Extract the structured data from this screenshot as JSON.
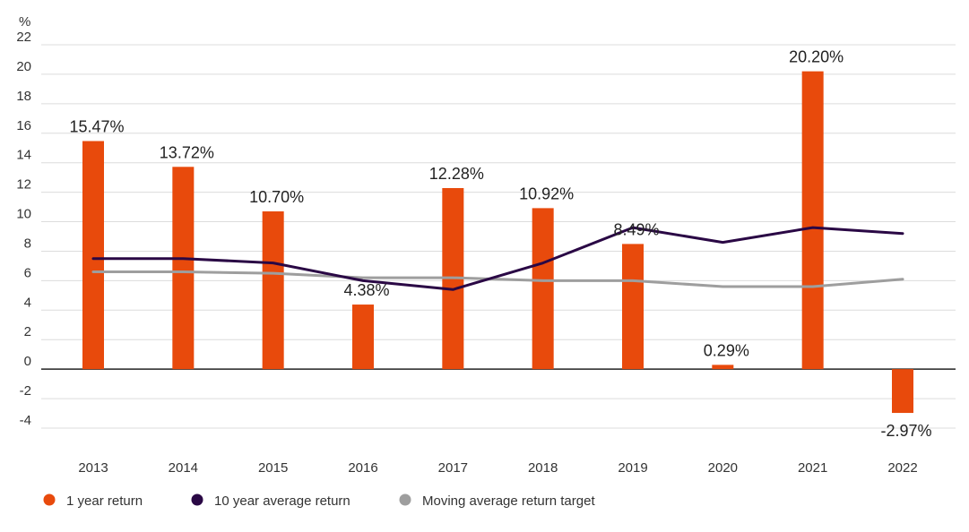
{
  "chart_data": {
    "type": "bar",
    "unit_label": "%",
    "categories": [
      "2013",
      "2014",
      "2015",
      "2016",
      "2017",
      "2018",
      "2019",
      "2020",
      "2021",
      "2022"
    ],
    "series": [
      {
        "name": "1 year return",
        "kind": "bar",
        "color": "#e84a0c",
        "values": [
          15.47,
          13.72,
          10.7,
          4.38,
          12.28,
          10.92,
          8.49,
          0.29,
          20.2,
          -2.97
        ],
        "data_labels": [
          "15.47%",
          "13.72%",
          "10.70%",
          "4.38%",
          "12.28%",
          "10.92%",
          "8.49%",
          "0.29%",
          "20.20%",
          "-2.97%"
        ]
      },
      {
        "name": "10 year average return",
        "kind": "line",
        "color": "#2a0845",
        "values": [
          7.5,
          7.5,
          7.2,
          6.0,
          5.4,
          7.2,
          9.6,
          8.6,
          9.6,
          9.2
        ]
      },
      {
        "name": "Moving average return target",
        "kind": "line",
        "color": "#9e9e9e",
        "values": [
          6.6,
          6.6,
          6.5,
          6.2,
          6.2,
          6.0,
          6.0,
          5.6,
          5.6,
          6.1
        ]
      }
    ],
    "y_ticks": [
      "22",
      "20",
      "18",
      "16",
      "14",
      "12",
      "10",
      "8",
      "6",
      "4",
      "2",
      "0",
      "-2",
      "-4"
    ],
    "ylim": [
      -4,
      22
    ],
    "grid": true,
    "legend_position": "bottom-left"
  }
}
